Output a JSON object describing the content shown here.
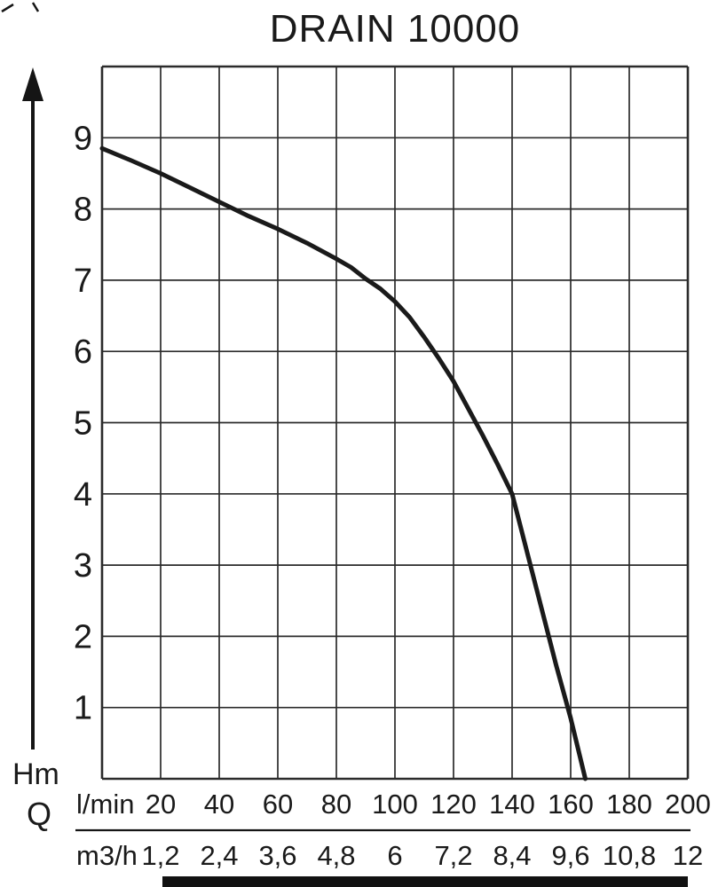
{
  "chart_data": {
    "type": "line",
    "title": "DRAIN 10000",
    "y_axis": {
      "label": "Hm",
      "min": 0,
      "max": 10,
      "ticks": [
        1,
        2,
        3,
        4,
        5,
        6,
        7,
        8,
        9
      ]
    },
    "x_axis_primary": {
      "label": "l/min",
      "min": 0,
      "max": 200,
      "ticks": [
        20,
        40,
        60,
        80,
        100,
        120,
        140,
        160,
        180,
        200
      ]
    },
    "x_axis_secondary": {
      "label": "m3/h",
      "ticks": [
        "1,2",
        "2,4",
        "3,6",
        "4,8",
        "6",
        "7,2",
        "8,4",
        "9,6",
        "10,8",
        "12"
      ]
    },
    "flow_axis_label": "Q",
    "grid": true,
    "legend": "none",
    "series": [
      {
        "name": "DRAIN 10000 head-flow curve",
        "points": [
          [
            0,
            8.85
          ],
          [
            10,
            8.68
          ],
          [
            20,
            8.5
          ],
          [
            30,
            8.3
          ],
          [
            40,
            8.1
          ],
          [
            50,
            7.9
          ],
          [
            60,
            7.72
          ],
          [
            70,
            7.52
          ],
          [
            80,
            7.3
          ],
          [
            85,
            7.18
          ],
          [
            90,
            7.02
          ],
          [
            95,
            6.88
          ],
          [
            100,
            6.7
          ],
          [
            105,
            6.48
          ],
          [
            110,
            6.2
          ],
          [
            115,
            5.9
          ],
          [
            120,
            5.58
          ],
          [
            125,
            5.2
          ],
          [
            130,
            4.82
          ],
          [
            135,
            4.42
          ],
          [
            140,
            4.0
          ],
          [
            145,
            3.2
          ],
          [
            150,
            2.4
          ],
          [
            155,
            1.6
          ],
          [
            160,
            0.85
          ],
          [
            165,
            0
          ]
        ]
      }
    ]
  },
  "colors": {
    "curve": "#1a1a1a",
    "grid": "#2b2b2b",
    "axis": "#151515",
    "background": "#ffffff",
    "bottom_bar": "#111111"
  }
}
